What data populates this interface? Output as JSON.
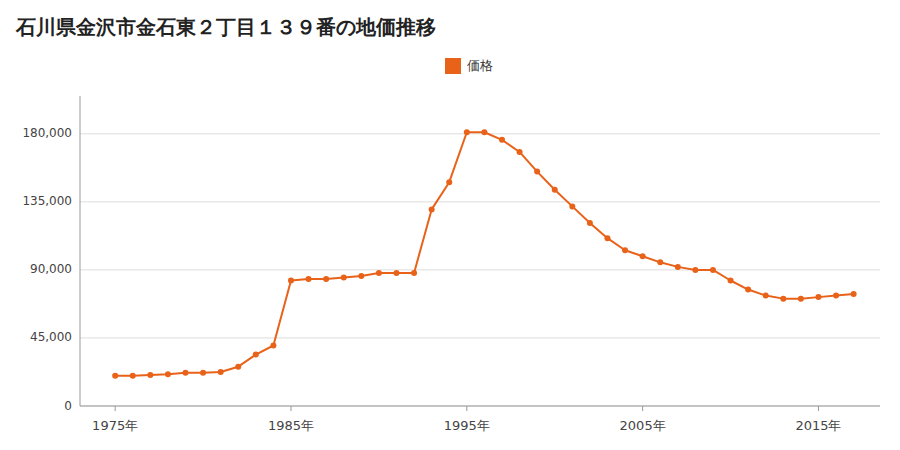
{
  "chart_data": {
    "type": "line",
    "title": "石川県金沢市金石東２丁目１３９番の地価推移",
    "x": [
      1975,
      1976,
      1977,
      1978,
      1979,
      1980,
      1981,
      1982,
      1983,
      1984,
      1985,
      1986,
      1987,
      1988,
      1989,
      1990,
      1991,
      1992,
      1993,
      1994,
      1995,
      1996,
      1997,
      1998,
      1999,
      2000,
      2001,
      2002,
      2003,
      2004,
      2005,
      2006,
      2007,
      2008,
      2009,
      2010,
      2011,
      2012,
      2013,
      2014,
      2015,
      2016,
      2017
    ],
    "series": [
      {
        "name": "価格",
        "color": "#e8621a",
        "marker": "circle",
        "values": [
          20000,
          20000,
          20500,
          21000,
          22000,
          22000,
          22500,
          26000,
          34000,
          40000,
          83000,
          84000,
          84000,
          85000,
          86000,
          88000,
          88000,
          88000,
          130000,
          148000,
          181000,
          181000,
          176000,
          168000,
          155000,
          143000,
          132000,
          121000,
          111000,
          103000,
          99000,
          95000,
          92000,
          90000,
          90000,
          83000,
          77000,
          73000,
          71000,
          71000,
          72000,
          73000,
          74000
        ]
      }
    ],
    "xlim": [
      1973,
      2018.5
    ],
    "xticks": [
      {
        "value": 1975,
        "label": "1975年"
      },
      {
        "value": 1985,
        "label": "1985年"
      },
      {
        "value": 1995,
        "label": "1995年"
      },
      {
        "value": 2005,
        "label": "2005年"
      },
      {
        "value": 2015,
        "label": "2015年"
      }
    ],
    "ylim": [
      0,
      205000
    ],
    "yticks": [
      0,
      {
        "value": 45000,
        "label": "45,000"
      },
      {
        "value": 90000,
        "label": "90,000"
      },
      {
        "value": 135000,
        "label": "135,000"
      },
      {
        "value": 180000,
        "label": "180,000"
      }
    ],
    "grid": true,
    "legend": "top"
  }
}
